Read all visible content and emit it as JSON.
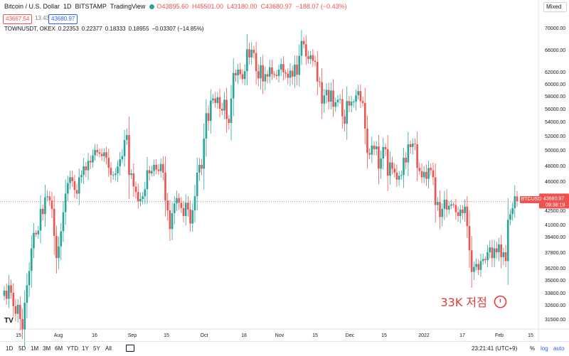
{
  "header": {
    "symbol_title": "Bitcoin / U.S. Dollar",
    "interval": "1D",
    "exchange": "BITSTAMP",
    "source": "TradingView",
    "open": "O43895.60",
    "high": "H45501.00",
    "low": "L43180.00",
    "close": "C43680.97",
    "change": "−188.07 (−0.43%)",
    "sell_price": "43667.54",
    "spread": "13.43",
    "buy_price": "43680.97",
    "mixed_label": "Mixed"
  },
  "overlay": {
    "symbol": "TOWNUSDT, OKEX",
    "open": "0.22353",
    "high": "0.22377",
    "low": "0.18333",
    "close": "0.18955",
    "change": "−0.03307 (−14.85%)"
  },
  "bottom_bar": {
    "timeframes": [
      "1D",
      "5D",
      "1M",
      "3M",
      "6M",
      "YTD",
      "1Y",
      "5Y",
      "All"
    ],
    "clock": "23:21:41 (UTC+9)",
    "percent_label": "%",
    "log_label": "log",
    "auto_label": "auto"
  },
  "watermark": "TV",
  "chart_data": {
    "type": "candlestick",
    "y_axis_ticks": [
      31500,
      32600,
      33800,
      35000,
      36200,
      37800,
      39400,
      41000,
      42500,
      44000,
      46000,
      48000,
      50000,
      52000,
      54000,
      56000,
      58000,
      60000,
      62000,
      66000,
      70000
    ],
    "y_tick_labels": [
      "31500.00",
      "32600.00",
      "33800.00",
      "35000.00",
      "36200.00",
      "37800.00",
      "39400.00",
      "41000.00",
      "42500.00",
      "44000.00",
      "46000.00",
      "48000.00",
      "50000.00",
      "52000.00",
      "54000.00",
      "56000.00",
      "58000.00",
      "60000.00",
      "62000.00",
      "66000.00",
      "70000.00"
    ],
    "x_tick_labels": [
      "15",
      "Aug",
      "16",
      "Sep",
      "15",
      "Oct",
      "18",
      "Nov",
      "15",
      "Dec",
      "15",
      "2022",
      "17",
      "Feb",
      "15"
    ],
    "last_price": {
      "symbol": "BTCUSD",
      "price": "43680.97",
      "countdown": "09:38:19",
      "value": 43680.97
    },
    "colors": {
      "up": "#26a69a",
      "down": "#ef5350",
      "annotation": "#e53935"
    },
    "annotation": {
      "text": "33K 저점",
      "price": 32900
    },
    "closes": [
      34000,
      33200,
      34500,
      33800,
      32500,
      31900,
      32600,
      31500,
      30700,
      32800,
      34500,
      35900,
      38200,
      39900,
      39700,
      40200,
      42700,
      42100,
      44200,
      44300,
      43800,
      42700,
      39500,
      37200,
      38400,
      40100,
      42300,
      44600,
      45800,
      46500,
      46000,
      45000,
      44600,
      46500,
      46800,
      47900,
      47400,
      48600,
      48400,
      49300,
      50000,
      49700,
      49500,
      49200,
      49700,
      49000,
      47700,
      46800,
      46800,
      47000,
      47900,
      48800,
      49200,
      51400,
      52100,
      46800,
      47000,
      45400,
      44800,
      43700,
      44000,
      44300,
      45100,
      47400,
      47000,
      47300,
      48100,
      47500,
      47300,
      48200,
      47100,
      43800,
      42500,
      40400,
      42200,
      43400,
      44100,
      43500,
      42800,
      41900,
      43500,
      42600,
      41100,
      42500,
      44300,
      47100,
      48100,
      47600,
      51600,
      55300,
      54100,
      57300,
      57600,
      56900,
      57800,
      56000,
      55700,
      57400,
      54400,
      53800,
      57600,
      61800,
      61400,
      62400,
      61600,
      60800,
      62100,
      66100,
      64600,
      66000,
      65400,
      62100,
      60900,
      63200,
      60400,
      61600,
      61200,
      62800,
      61600,
      61500,
      61300,
      62400,
      63400,
      61900,
      61700,
      61000,
      62200,
      61200,
      63300,
      61500,
      64900,
      67600,
      67000,
      64800,
      64300,
      65000,
      64000,
      63800,
      60400,
      60300,
      56800,
      58100,
      59000,
      57100,
      58900,
      56300,
      57000,
      57400,
      57500,
      54800,
      53700,
      57200,
      56500,
      57100,
      57100,
      58100,
      58800,
      57200,
      56900,
      53000,
      49600,
      49400,
      50600,
      50100,
      50500,
      47600,
      48900,
      50400,
      50100,
      46700,
      48400,
      47600,
      47100,
      46200,
      46700,
      46800,
      49000,
      48400,
      50800,
      50400,
      50900,
      50800,
      47700,
      47300,
      46500,
      47200,
      46300,
      47700,
      47400,
      46500,
      43200,
      43600,
      41800,
      42700,
      43900,
      42600,
      43100,
      43300,
      43200,
      42300,
      41900,
      42600,
      42200,
      43000,
      40800,
      38000,
      35800,
      36300,
      36600,
      36000,
      36900,
      37100,
      37000,
      37800,
      38300,
      37200,
      38200,
      37800,
      38600,
      37300,
      37800,
      36900,
      41500,
      42100,
      42800,
      44300,
      43700
    ]
  }
}
